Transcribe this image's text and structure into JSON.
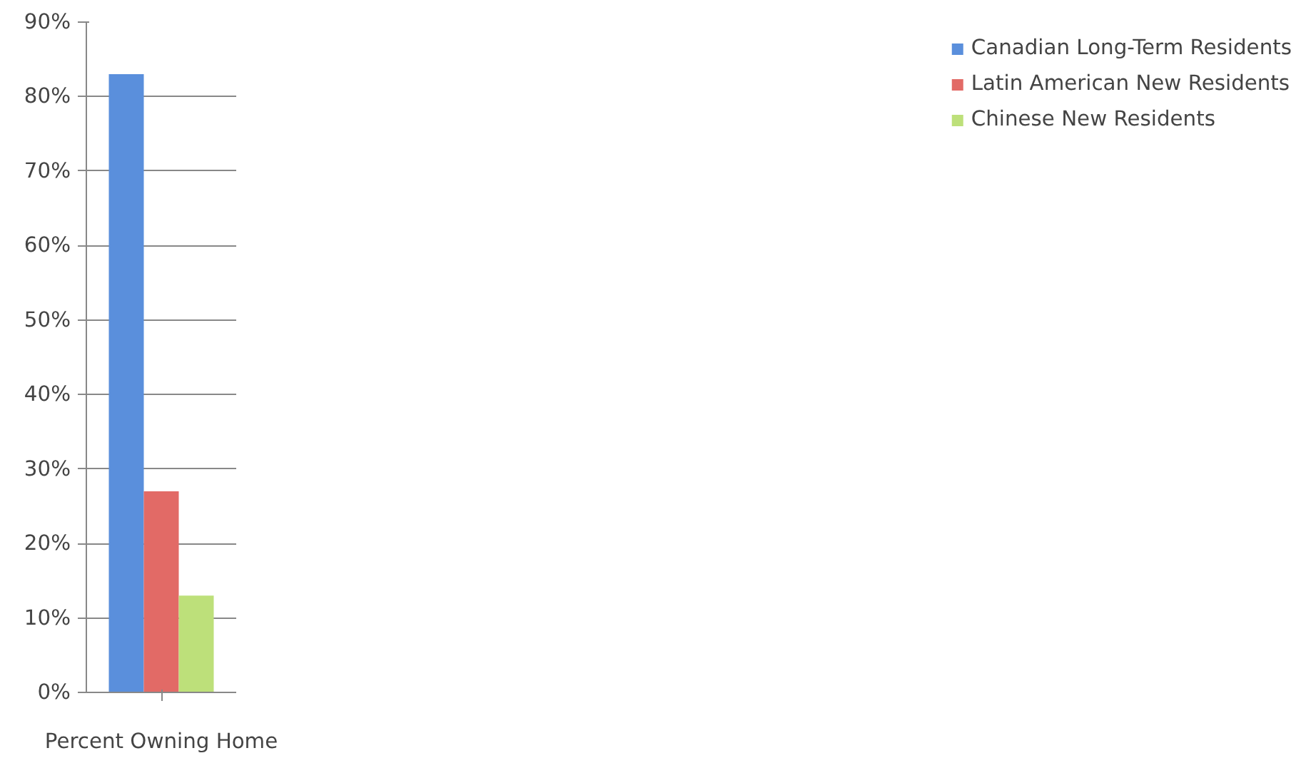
{
  "chart_data": {
    "type": "bar",
    "categories": [
      "Percent Owning Home"
    ],
    "series": [
      {
        "name": "Canadian Long-Term Residents",
        "color": "#5a8fdc",
        "values": [
          83
        ]
      },
      {
        "name": "Latin American New Residents",
        "color": "#e26a66",
        "values": [
          27
        ]
      },
      {
        "name": "Chinese New Residents",
        "color": "#bde07a",
        "values": [
          13
        ]
      }
    ],
    "ylim": [
      0,
      90
    ],
    "yticks": [
      {
        "value": 0,
        "label": "0%"
      },
      {
        "value": 10,
        "label": "10%"
      },
      {
        "value": 20,
        "label": "20%"
      },
      {
        "value": 30,
        "label": "30%"
      },
      {
        "value": 40,
        "label": "40%"
      },
      {
        "value": 50,
        "label": "50%"
      },
      {
        "value": 60,
        "label": "60%"
      },
      {
        "value": 70,
        "label": "70%"
      },
      {
        "value": 80,
        "label": "80%"
      },
      {
        "value": 90,
        "label": "90%"
      }
    ],
    "grid": "y",
    "legend": "right"
  }
}
